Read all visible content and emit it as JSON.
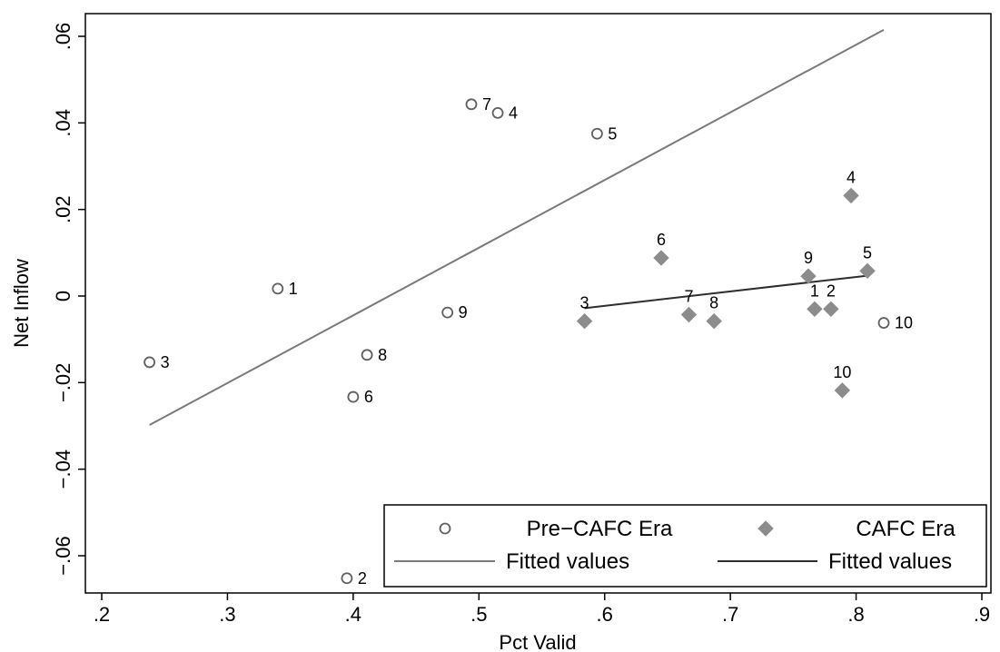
{
  "chart_data": {
    "type": "scatter",
    "title": "",
    "xlabel": "Pct Valid",
    "ylabel": "Net Inflow",
    "xlim": [
      0.2,
      0.9
    ],
    "ylim": [
      -0.068,
      0.066
    ],
    "xticks": [
      0.2,
      0.3,
      0.4,
      0.5,
      0.6,
      0.7,
      0.8,
      0.9
    ],
    "xtick_labels": [
      ".2",
      ".3",
      ".4",
      ".5",
      ".6",
      ".7",
      ".8",
      ".9"
    ],
    "yticks": [
      0.06,
      0.04,
      0.02,
      0,
      -0.02,
      -0.04,
      -0.06
    ],
    "ytick_labels": [
      ".06",
      ".04",
      ".02",
      "0",
      "−.02",
      "−.04",
      "−.06"
    ],
    "grid": false,
    "legend_position": "bottom-right",
    "series": [
      {
        "name": "Pre−CAFC Era",
        "marker": "hollow-circle",
        "color": "#606060",
        "label_side": "right",
        "points": [
          {
            "label": "1",
            "x": 0.34,
            "y": 0.0017
          },
          {
            "label": "2",
            "x": 0.395,
            "y": -0.0652
          },
          {
            "label": "3",
            "x": 0.238,
            "y": -0.0153
          },
          {
            "label": "4",
            "x": 0.515,
            "y": 0.0423
          },
          {
            "label": "5",
            "x": 0.594,
            "y": 0.0375
          },
          {
            "label": "6",
            "x": 0.4,
            "y": -0.0233
          },
          {
            "label": "7",
            "x": 0.494,
            "y": 0.0443
          },
          {
            "label": "8",
            "x": 0.411,
            "y": -0.0136
          },
          {
            "label": "9",
            "x": 0.475,
            "y": -0.0038
          },
          {
            "label": "10",
            "x": 0.822,
            "y": -0.0062
          }
        ]
      },
      {
        "name": "CAFC Era",
        "marker": "filled-diamond",
        "color": "#8c8c8c",
        "label_side": "above",
        "points": [
          {
            "label": "1",
            "x": 0.767,
            "y": -0.003
          },
          {
            "label": "2",
            "x": 0.78,
            "y": -0.003
          },
          {
            "label": "3",
            "x": 0.584,
            "y": -0.0058
          },
          {
            "label": "4",
            "x": 0.796,
            "y": 0.0232
          },
          {
            "label": "5",
            "x": 0.809,
            "y": 0.0058
          },
          {
            "label": "6",
            "x": 0.645,
            "y": 0.0088
          },
          {
            "label": "7",
            "x": 0.667,
            "y": -0.0043
          },
          {
            "label": "8",
            "x": 0.687,
            "y": -0.0058
          },
          {
            "label": "9",
            "x": 0.762,
            "y": 0.0046
          },
          {
            "label": "10",
            "x": 0.789,
            "y": -0.0218
          }
        ]
      },
      {
        "name": "Fitted values",
        "type": "line",
        "color": "#7a7a7a",
        "x": [
          0.238,
          0.822
        ],
        "y": [
          -0.0298,
          0.0615
        ]
      },
      {
        "name": "Fitted values",
        "type": "line",
        "color": "#2e2e2e",
        "x": [
          0.584,
          0.809
        ],
        "y": [
          -0.0028,
          0.0047
        ]
      }
    ],
    "legend": [
      {
        "label": "Pre−CAFC Era",
        "symbol": "hollow-circle",
        "color": "#606060"
      },
      {
        "label": "CAFC Era",
        "symbol": "filled-diamond",
        "color": "#8c8c8c"
      },
      {
        "label": "Fitted values",
        "symbol": "line",
        "color": "#7a7a7a"
      },
      {
        "label": "Fitted values",
        "symbol": "line",
        "color": "#2e2e2e"
      }
    ]
  }
}
